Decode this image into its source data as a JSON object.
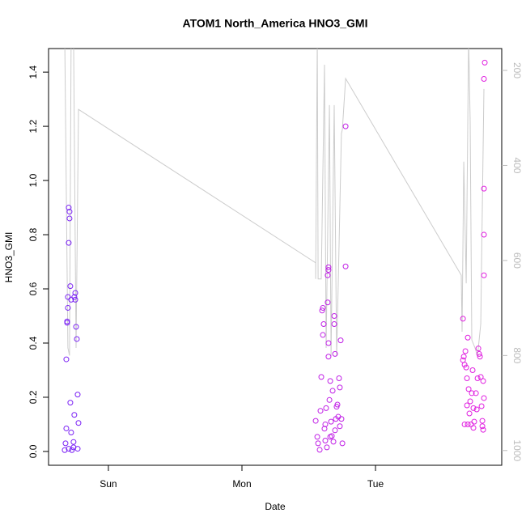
{
  "chart_data": {
    "type": "scatter",
    "title": "ATOM1 North_America HNO3_GMI",
    "xlabel": "Date",
    "ylabel": "HNO3_GMI",
    "xlim": [
      0.552,
      3.945
    ],
    "xticks": [
      {
        "value": 1,
        "label": "Sun"
      },
      {
        "value": 2,
        "label": "Mon"
      },
      {
        "value": 3,
        "label": "Tue"
      }
    ],
    "ylim": [
      -0.051,
      1.487
    ],
    "yticks": [
      {
        "value": 0,
        "label": "0.0"
      },
      0.2,
      0.4,
      0.6,
      0.8,
      {
        "value": 1,
        "label": "1.0"
      },
      1.2,
      1.4
    ],
    "y2lim": [
      1031,
      154
    ],
    "y2ticks": [
      200,
      400,
      600,
      800,
      1000
    ],
    "y2tick_color": "#bbbbbb",
    "series": [
      {
        "color": "#7b22f5",
        "x": [
          0.685,
          0.691,
          0.697,
          0.697,
          0.703,
          0.703,
          0.709,
          0.709,
          0.715,
          0.721,
          0.745,
          0.752,
          0.752,
          0.758,
          0.764,
          0.77,
          0.776,
          0.745,
          0.715,
          0.721,
          0.685,
          0.679,
          0.673,
          0.703,
          0.727,
          0.739,
          0.77,
          0.739,
          0.691
        ],
        "values": [
          0.34,
          0.475,
          0.53,
          0.57,
          0.77,
          0.9,
          0.885,
          0.86,
          0.61,
          0.56,
          0.57,
          0.585,
          0.56,
          0.46,
          0.415,
          0.21,
          0.105,
          0.135,
          0.18,
          0.07,
          0.085,
          0.03,
          0.005,
          0.01,
          0.005,
          0.015,
          0.01,
          0.035,
          0.48
        ]
      },
      {
        "color": "#c01fe6",
        "x": [
          2.552,
          2.564,
          2.57,
          2.582,
          2.594,
          2.6,
          2.606,
          2.612,
          2.606,
          2.618,
          2.624,
          2.63,
          2.636,
          2.642,
          2.648,
          2.648,
          2.642,
          2.648,
          2.648,
          2.655,
          2.661,
          2.667,
          2.673,
          2.679,
          2.685,
          2.691,
          2.691,
          2.697,
          2.703,
          2.709,
          2.715,
          2.721,
          2.727,
          2.733,
          2.739,
          2.745,
          2.752,
          2.776,
          2.776,
          2.588,
          2.624,
          2.661,
          2.697,
          2.733
        ],
        "values": [
          0.113,
          0.054,
          0.03,
          0.006,
          0.275,
          0.52,
          0.53,
          0.47,
          0.43,
          0.084,
          0.04,
          0.16,
          0.015,
          0.65,
          0.67,
          0.68,
          0.55,
          0.4,
          0.35,
          0.19,
          0.26,
          0.11,
          0.057,
          0.224,
          0.036,
          0.5,
          0.47,
          0.36,
          0.12,
          0.165,
          0.173,
          0.128,
          0.27,
          0.236,
          0.41,
          0.12,
          0.03,
          1.2,
          0.683,
          0.15,
          0.1,
          0.054,
          0.078,
          0.093
        ]
      },
      {
        "color": "#e020e0",
        "x": [
          3.655,
          3.661,
          3.667,
          3.673,
          3.679,
          3.685,
          3.691,
          3.685,
          3.691,
          3.697,
          3.703,
          3.709,
          3.715,
          3.721,
          3.727,
          3.733,
          3.739,
          3.752,
          3.758,
          3.764,
          3.77,
          3.776,
          3.782,
          3.788,
          3.794,
          3.8,
          3.806,
          3.806,
          3.812,
          3.812,
          3.812,
          3.812,
          3.812,
          3.818,
          3.655,
          3.667,
          3.733,
          3.8
        ],
        "values": [
          0.49,
          0.35,
          0.32,
          0.37,
          0.31,
          0.27,
          0.42,
          0.17,
          0.1,
          0.23,
          0.14,
          0.185,
          0.1,
          0.215,
          0.3,
          0.16,
          0.11,
          0.215,
          0.155,
          0.27,
          0.38,
          0.36,
          0.35,
          0.275,
          0.167,
          0.093,
          0.08,
          0.26,
          0.197,
          0.65,
          0.8,
          0.97,
          1.375,
          1.435,
          0.337,
          0.1,
          0.087,
          0.113
        ]
      }
    ],
    "line": {
      "color": "#cccccc",
      "axis": "y2",
      "x": [
        0.673,
        0.697,
        0.709,
        0.721,
        0.739,
        0.758,
        0.776,
        2.552,
        2.552,
        2.564,
        2.57,
        2.594,
        2.618,
        2.63,
        2.655,
        2.667,
        2.691,
        2.709,
        2.721,
        2.745,
        2.752,
        2.776,
        3.642,
        3.648,
        3.661,
        3.673,
        3.679,
        3.697,
        3.709,
        3.721,
        3.745,
        3.764,
        3.788,
        3.812
      ],
      "values": [
        130,
        784,
        800,
        130,
        130,
        784,
        282,
        605,
        639,
        130,
        639,
        639,
        188,
        784,
        273,
        801,
        273,
        801,
        648,
        333,
        324,
        217,
        631,
        750,
        392,
        563,
        648,
        130,
        307,
        767,
        784,
        801,
        733,
        239
      ]
    }
  }
}
